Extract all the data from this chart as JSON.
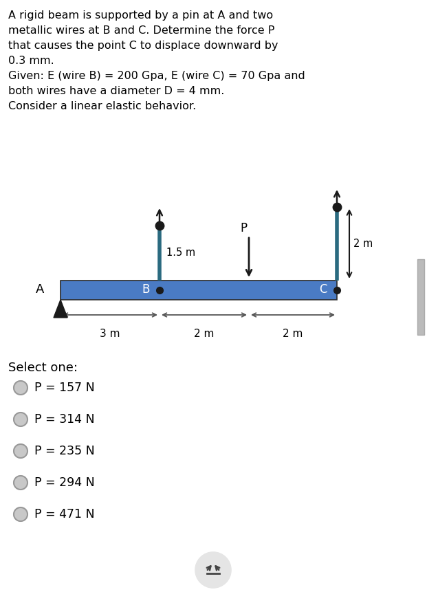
{
  "problem_text_lines": [
    "A rigid beam is supported by a pin at A and two",
    "metallic wires at B and C. Determine the force P",
    "that causes the point C to displace downward by",
    "0.3 mm.",
    "Given: E (wire B) = 200 Gpa, E (wire C) = 70 Gpa and",
    "both wires have a diameter D = 4 mm.",
    "Consider a linear elastic behavior."
  ],
  "beam_color": "#4A7BC4",
  "wire_color": "#2B6B80",
  "text_color": "#000000",
  "bg_color": "#ffffff",
  "options": [
    "P = 157 N",
    "P = 314 N",
    "P = 235 N",
    "P = 294 N",
    "P = 471 N"
  ],
  "select_text": "Select one:",
  "dim_3m": "3 m",
  "dim_2m_mid": "2 m",
  "dim_2m_right": "2 m",
  "dim_1_5m": "1.5 m",
  "dim_2m_wire": "2 m",
  "label_A": "A",
  "label_B": "B",
  "label_C": "C",
  "label_P": "P",
  "arrow_color": "#1a1a1a",
  "dim_arrow_color": "#555555",
  "radio_fill": "#c8c8c8",
  "radio_border": "#999999",
  "scroll_color": "#bbbbbb",
  "pin_color": "#1a1a1a"
}
